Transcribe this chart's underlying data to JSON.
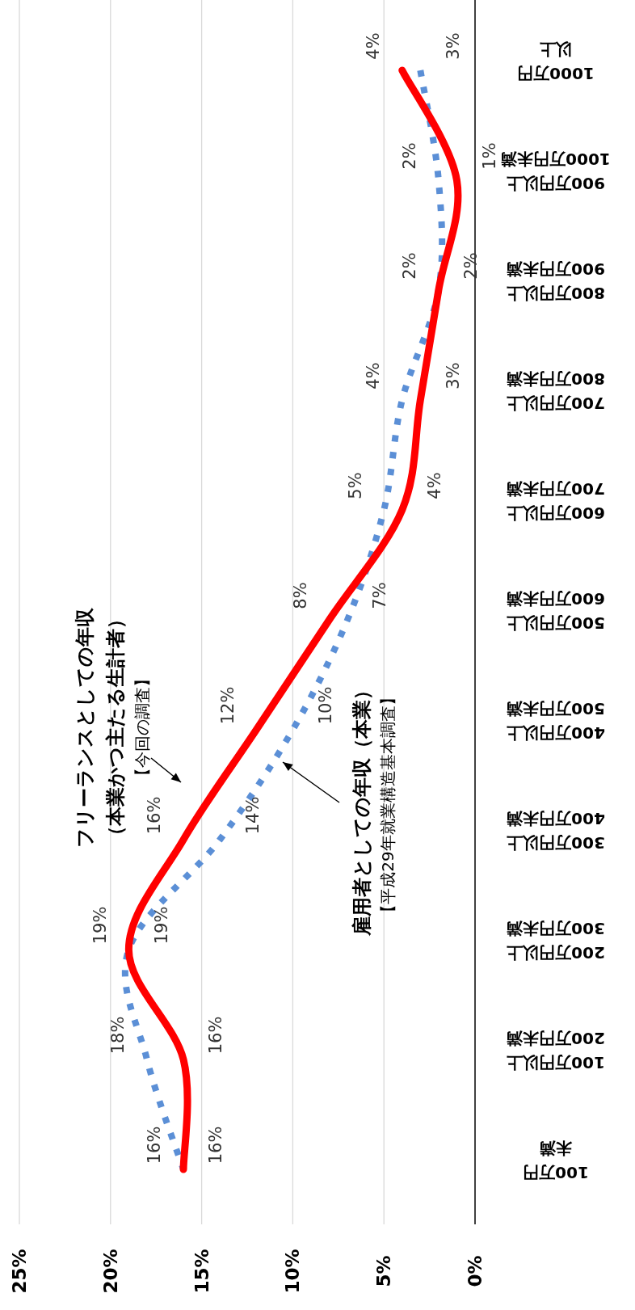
{
  "chart_data": {
    "type": "line",
    "orientation": "horizontal",
    "categories": [
      "1000万円以上",
      "900万円以上1000万円未満",
      "800万円以上900万円未満",
      "700万円以上800万円未満",
      "600万円以上700万円未満",
      "500万円以上600万円未満",
      "400万円以上500万円未満",
      "300万円以上400万円未満",
      "200万円以上300万円未満",
      "100万円以上200万円未満",
      "100万円未満"
    ],
    "series": [
      {
        "name": "フリーランスとしての年収（本業かつ主たる生計者）",
        "color": "#ff0000",
        "line_style": "solid",
        "values": [
          4,
          1,
          2,
          3,
          4,
          8,
          12,
          16,
          19,
          16,
          16
        ],
        "value_labels": [
          "4%",
          "1%",
          "2%",
          "3%",
          "4%",
          "8%",
          "12%",
          "16%",
          "19%",
          "16%",
          "16%"
        ]
      },
      {
        "name": "雇用者としての年収（本業）",
        "color": "#5b8fd6",
        "line_style": "dotted",
        "values": [
          3,
          2,
          2,
          4,
          5,
          7,
          10,
          14,
          19,
          18,
          16
        ],
        "value_labels": [
          "3%",
          "2%",
          "2%",
          "4%",
          "5%",
          "7%",
          "10%",
          "14%",
          "19%",
          "18%",
          "16%"
        ]
      }
    ],
    "annotations": [
      "【今回の調査】",
      "【平成29年就業構造基本調査】"
    ],
    "xlim": [
      25,
      0
    ],
    "xticks": [
      {
        "value": 0,
        "label": "0%"
      },
      {
        "value": 5,
        "label": "5%"
      },
      {
        "value": 10,
        "label": "10%"
      },
      {
        "value": 15,
        "label": "15%"
      },
      {
        "value": 20,
        "label": "20%"
      },
      {
        "value": 25,
        "label": "25%"
      }
    ],
    "grid": "x"
  }
}
